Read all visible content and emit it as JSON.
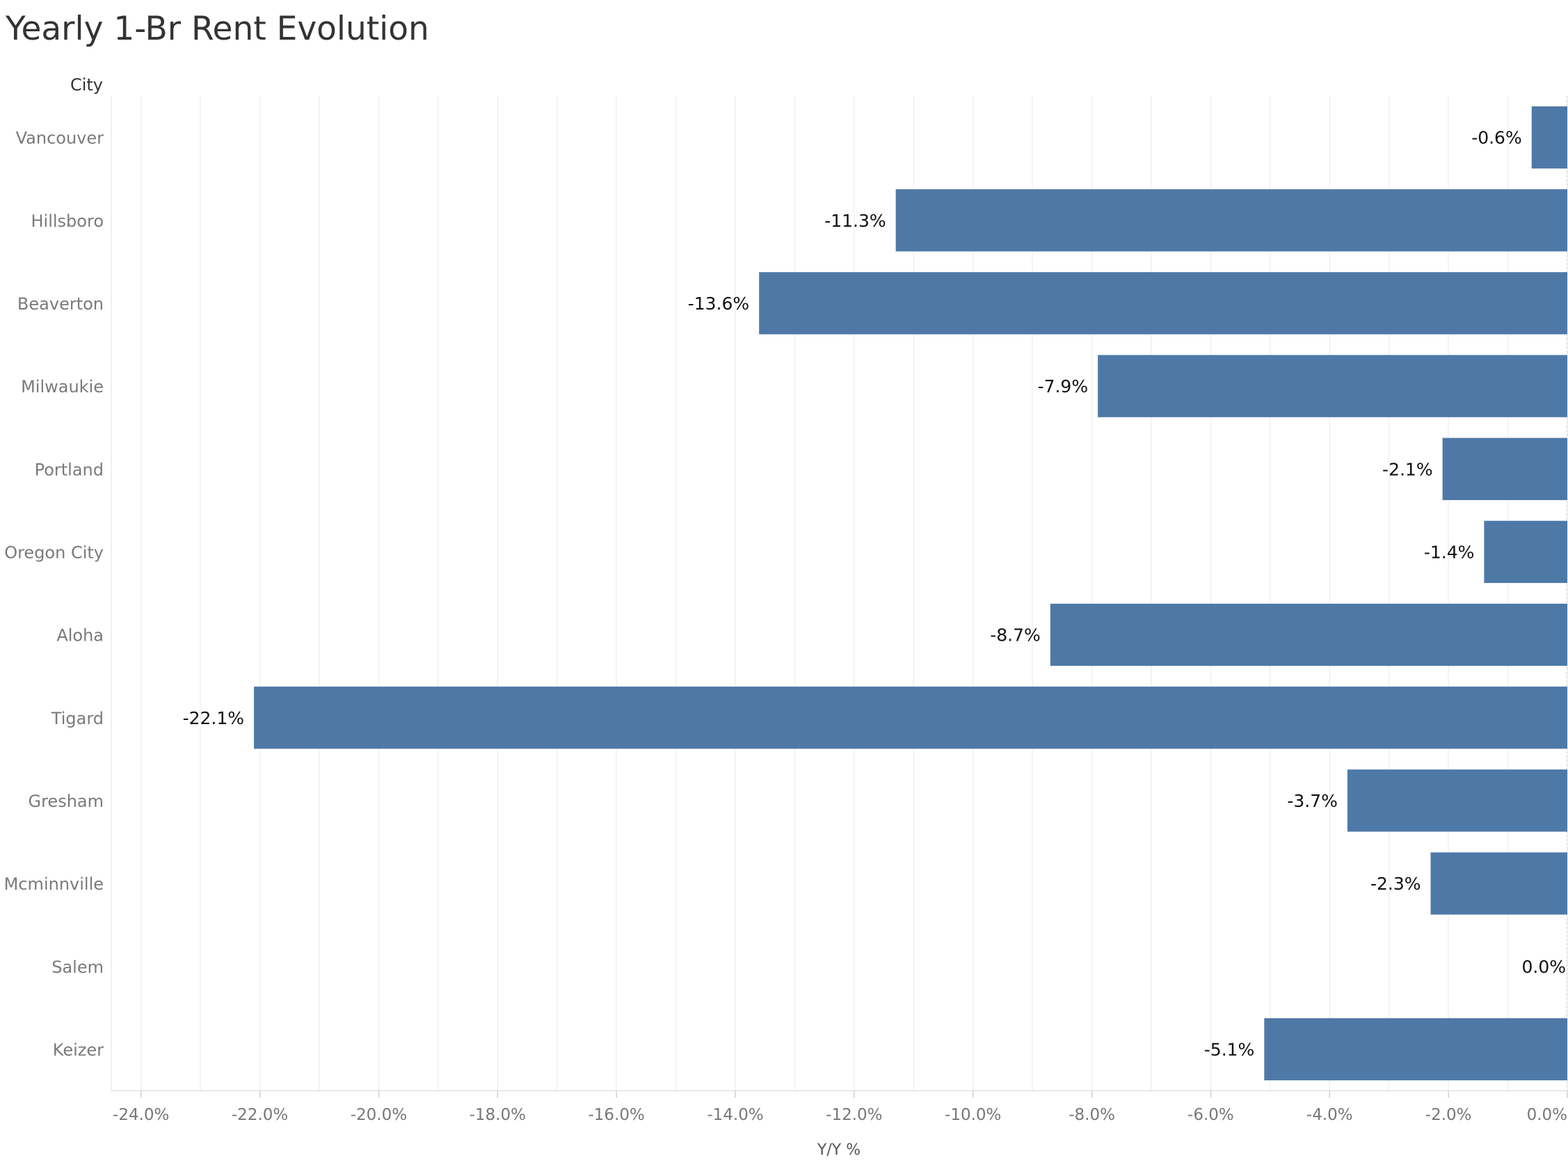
{
  "chart_data": {
    "type": "bar",
    "orientation": "horizontal",
    "title": "Yearly 1-Br Rent Evolution",
    "row_header": "City",
    "xlabel": "Y/Y %",
    "xlim": [
      -24.5,
      0
    ],
    "x_ticks": [
      "-24.0%",
      "-22.0%",
      "-20.0%",
      "-18.0%",
      "-16.0%",
      "-14.0%",
      "-12.0%",
      "-10.0%",
      "-8.0%",
      "-6.0%",
      "-4.0%",
      "-2.0%",
      "0.0%"
    ],
    "x_tick_values": [
      -24,
      -22,
      -20,
      -18,
      -16,
      -14,
      -12,
      -10,
      -8,
      -6,
      -4,
      -2,
      0
    ],
    "grid": true,
    "categories": [
      "Vancouver",
      "Hillsboro",
      "Beaverton",
      "Milwaukie",
      "Portland",
      "Oregon City",
      "Aloha",
      "Tigard",
      "Gresham",
      "Mcminnville",
      "Salem",
      "Keizer"
    ],
    "values": [
      -0.6,
      -11.3,
      -13.6,
      -7.9,
      -2.1,
      -1.4,
      -8.7,
      -22.1,
      -3.7,
      -2.3,
      0.0,
      -5.1
    ],
    "value_labels": [
      "-0.6%",
      "-11.3%",
      "-13.6%",
      "-7.9%",
      "-2.1%",
      "-1.4%",
      "-8.7%",
      "-22.1%",
      "-3.7%",
      "-2.3%",
      "0.0%",
      "-5.1%"
    ],
    "bar_color": "#4e79a7",
    "grid_color": "#f0f0f0",
    "category_label_color": "#7a7a7a",
    "value_label_color": "#111111"
  }
}
